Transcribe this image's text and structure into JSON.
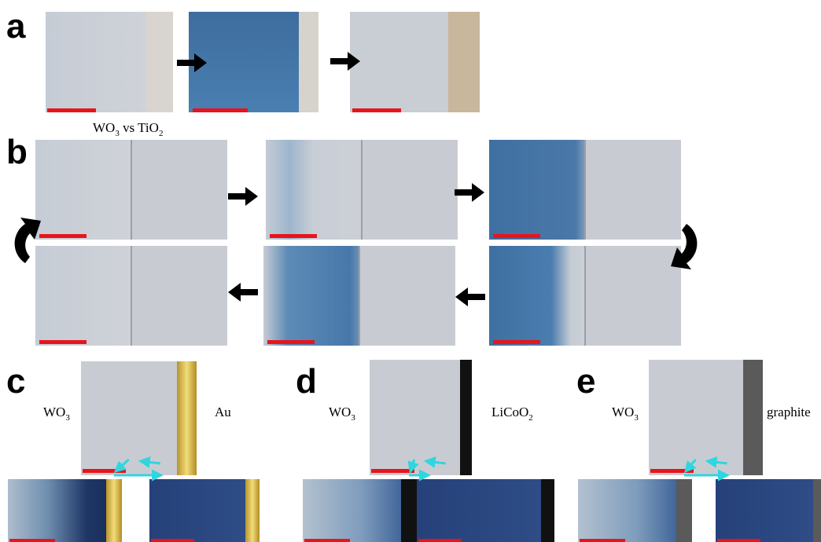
{
  "panels": [
    {
      "label": "a"
    },
    {
      "label": "b",
      "caption": [
        "WO",
        "3",
        " vs TiO",
        "2"
      ]
    },
    {
      "label": "c",
      "left": [
        "WO",
        "3"
      ],
      "right": [
        "Au"
      ]
    },
    {
      "label": "d",
      "left": [
        "WO",
        "3"
      ],
      "right": [
        "LiCoO",
        "2"
      ]
    },
    {
      "label": "e",
      "left": [
        "WO",
        "3"
      ],
      "right": [
        "graphite"
      ]
    }
  ]
}
